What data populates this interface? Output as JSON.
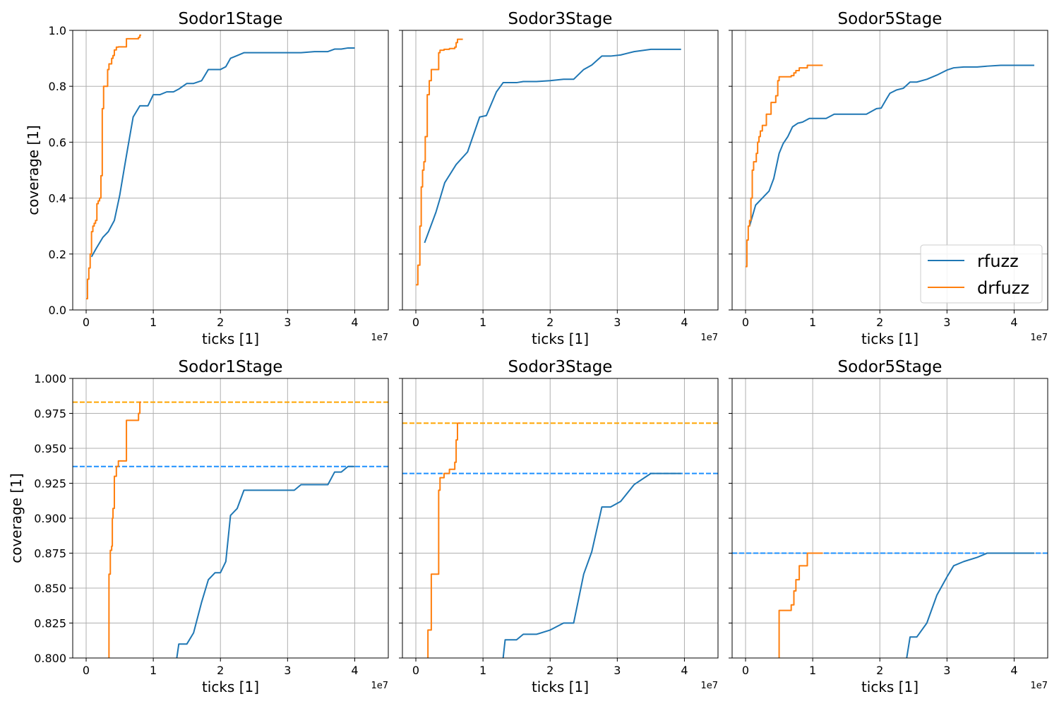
{
  "chart_data": [
    {
      "type": "line",
      "panel": "top-left",
      "title": "Sodor1Stage",
      "xlabel": "ticks [1]",
      "ylabel": "coverage [1]",
      "x_scale_label": "1e7",
      "xlim": [
        -0.2,
        4.5
      ],
      "ylim": [
        0.0,
        1.0
      ],
      "xticks": [
        0,
        1,
        2,
        3,
        4
      ],
      "yticks": [
        0.0,
        0.2,
        0.4,
        0.6,
        0.8,
        1.0
      ],
      "ytick_labels": [
        "0.0",
        "0.2",
        "0.4",
        "0.6",
        "0.8",
        "1.0"
      ],
      "show_ytick_labels": true,
      "grid": true,
      "series": [
        {
          "name": "rfuzz",
          "color": "#1f77b4",
          "step": false,
          "x": [
            0.08,
            0.15,
            0.25,
            0.33,
            0.42,
            0.5,
            0.57,
            0.62,
            0.7,
            0.8,
            0.92,
            1.0,
            1.1,
            1.2,
            1.3,
            1.38,
            1.5,
            1.6,
            1.72,
            1.82,
            1.92,
            2.0,
            2.08,
            2.15,
            2.25,
            2.35,
            2.5,
            2.8,
            3.1,
            3.2,
            3.4,
            3.6,
            3.7,
            3.8,
            3.9,
            4.0
          ],
          "y": [
            0.19,
            0.22,
            0.26,
            0.28,
            0.32,
            0.41,
            0.51,
            0.58,
            0.69,
            0.73,
            0.73,
            0.77,
            0.77,
            0.78,
            0.78,
            0.79,
            0.81,
            0.81,
            0.82,
            0.86,
            0.86,
            0.86,
            0.87,
            0.9,
            0.91,
            0.92,
            0.92,
            0.92,
            0.92,
            0.92,
            0.924,
            0.924,
            0.933,
            0.933,
            0.937,
            0.937
          ]
        },
        {
          "name": "drfuzz",
          "color": "#ff7f0e",
          "step": true,
          "x": [
            0.0,
            0.02,
            0.04,
            0.06,
            0.08,
            0.1,
            0.12,
            0.14,
            0.16,
            0.18,
            0.2,
            0.22,
            0.24,
            0.26,
            0.28,
            0.3,
            0.32,
            0.34,
            0.36,
            0.38,
            0.4,
            0.42,
            0.45,
            0.48,
            0.52,
            0.55,
            0.6,
            0.65,
            0.7,
            0.75,
            0.78,
            0.8,
            0.82
          ],
          "y": [
            0.04,
            0.11,
            0.15,
            0.2,
            0.28,
            0.3,
            0.31,
            0.32,
            0.38,
            0.39,
            0.4,
            0.48,
            0.72,
            0.8,
            0.8,
            0.8,
            0.86,
            0.88,
            0.88,
            0.9,
            0.91,
            0.93,
            0.94,
            0.941,
            0.941,
            0.941,
            0.97,
            0.97,
            0.97,
            0.97,
            0.975,
            0.983,
            0.983
          ]
        }
      ]
    },
    {
      "type": "line",
      "panel": "top-middle",
      "title": "Sodor3Stage",
      "xlabel": "ticks [1]",
      "ylabel": "",
      "x_scale_label": "1e7",
      "xlim": [
        -0.2,
        4.5
      ],
      "ylim": [
        0.0,
        1.0
      ],
      "xticks": [
        0,
        1,
        2,
        3,
        4
      ],
      "yticks": [
        0.0,
        0.2,
        0.4,
        0.6,
        0.8,
        1.0
      ],
      "ytick_labels": [],
      "show_ytick_labels": false,
      "grid": true,
      "series": [
        {
          "name": "rfuzz",
          "color": "#1f77b4",
          "step": false,
          "x": [
            0.13,
            0.3,
            0.43,
            0.6,
            0.77,
            0.95,
            1.05,
            1.2,
            1.3,
            1.5,
            1.6,
            1.8,
            2.0,
            2.2,
            2.35,
            2.5,
            2.62,
            2.77,
            2.9,
            3.05,
            3.25,
            3.5,
            3.75,
            3.95
          ],
          "y": [
            0.24,
            0.35,
            0.455,
            0.52,
            0.565,
            0.69,
            0.695,
            0.78,
            0.813,
            0.813,
            0.817,
            0.817,
            0.82,
            0.825,
            0.825,
            0.86,
            0.876,
            0.908,
            0.908,
            0.912,
            0.924,
            0.932,
            0.932,
            0.932
          ]
        },
        {
          "name": "drfuzz",
          "color": "#ff7f0e",
          "step": true,
          "x": [
            0.0,
            0.03,
            0.06,
            0.08,
            0.1,
            0.12,
            0.14,
            0.17,
            0.2,
            0.23,
            0.27,
            0.32,
            0.34,
            0.36,
            0.38,
            0.42,
            0.5,
            0.58,
            0.6,
            0.62,
            0.66,
            0.7
          ],
          "y": [
            0.09,
            0.16,
            0.3,
            0.44,
            0.5,
            0.53,
            0.62,
            0.77,
            0.82,
            0.86,
            0.86,
            0.86,
            0.92,
            0.929,
            0.929,
            0.932,
            0.935,
            0.94,
            0.956,
            0.968,
            0.968,
            0.968
          ]
        }
      ]
    },
    {
      "type": "line",
      "panel": "top-right",
      "title": "Sodor5Stage",
      "xlabel": "ticks [1]",
      "ylabel": "",
      "x_scale_label": "1e7",
      "xlim": [
        -0.2,
        4.5
      ],
      "ylim": [
        0.0,
        1.0
      ],
      "xticks": [
        0,
        1,
        2,
        3,
        4
      ],
      "yticks": [
        0.0,
        0.2,
        0.4,
        0.6,
        0.8,
        1.0
      ],
      "ytick_labels": [],
      "show_ytick_labels": false,
      "grid": true,
      "legend": {
        "placement": "lower right",
        "entries": [
          "rfuzz",
          "drfuzz"
        ]
      },
      "series": [
        {
          "name": "rfuzz",
          "color": "#1f77b4",
          "step": false,
          "x": [
            0.06,
            0.15,
            0.25,
            0.35,
            0.42,
            0.5,
            0.56,
            0.63,
            0.7,
            0.78,
            0.85,
            0.95,
            1.05,
            1.2,
            1.32,
            1.45,
            1.6,
            1.8,
            1.95,
            2.02,
            2.1,
            2.15,
            2.25,
            2.35,
            2.45,
            2.55,
            2.7,
            2.85,
            3.0,
            3.1,
            3.25,
            3.45,
            3.6,
            3.8,
            4.0,
            4.2,
            4.3
          ],
          "y": [
            0.3,
            0.375,
            0.4,
            0.425,
            0.47,
            0.56,
            0.595,
            0.62,
            0.655,
            0.668,
            0.672,
            0.685,
            0.685,
            0.685,
            0.7,
            0.7,
            0.7,
            0.7,
            0.72,
            0.722,
            0.755,
            0.775,
            0.787,
            0.793,
            0.815,
            0.815,
            0.825,
            0.84,
            0.858,
            0.866,
            0.869,
            0.869,
            0.872,
            0.875,
            0.875,
            0.875,
            0.875
          ]
        },
        {
          "name": "drfuzz",
          "color": "#ff7f0e",
          "step": true,
          "x": [
            0.0,
            0.02,
            0.04,
            0.06,
            0.08,
            0.1,
            0.12,
            0.14,
            0.16,
            0.18,
            0.2,
            0.22,
            0.25,
            0.28,
            0.31,
            0.35,
            0.38,
            0.42,
            0.45,
            0.48,
            0.5,
            0.55,
            0.62,
            0.68,
            0.72,
            0.75,
            0.8,
            0.85,
            0.92,
            1.0,
            1.05,
            1.1,
            1.15
          ],
          "y": [
            0.155,
            0.25,
            0.3,
            0.32,
            0.4,
            0.5,
            0.53,
            0.53,
            0.56,
            0.6,
            0.62,
            0.64,
            0.66,
            0.66,
            0.7,
            0.7,
            0.742,
            0.742,
            0.766,
            0.82,
            0.834,
            0.834,
            0.834,
            0.838,
            0.848,
            0.856,
            0.866,
            0.866,
            0.875,
            0.875,
            0.875,
            0.875,
            0.875
          ]
        }
      ]
    },
    {
      "type": "line",
      "panel": "bottom-left",
      "title": "Sodor1Stage",
      "xlabel": "ticks [1]",
      "ylabel": "coverage [1]",
      "x_scale_label": "1e7",
      "xlim": [
        -0.2,
        4.5
      ],
      "ylim": [
        0.8,
        1.0
      ],
      "xticks": [
        0,
        1,
        2,
        3,
        4
      ],
      "yticks": [
        0.8,
        0.825,
        0.85,
        0.875,
        0.9,
        0.925,
        0.95,
        0.975,
        1.0
      ],
      "ytick_labels": [
        "0.800",
        "0.825",
        "0.850",
        "0.875",
        "0.900",
        "0.925",
        "0.950",
        "0.975",
        "1.000"
      ],
      "show_ytick_labels": true,
      "grid": true,
      "hlines": [
        {
          "y": 0.983,
          "color": "#ffa500"
        },
        {
          "y": 0.937,
          "color": "#1e90ff"
        }
      ],
      "series": [
        {
          "name": "rfuzz",
          "color": "#1f77b4",
          "step": false,
          "x": [
            1.35,
            1.38,
            1.5,
            1.6,
            1.72,
            1.82,
            1.92,
            2.0,
            2.08,
            2.15,
            2.25,
            2.35,
            2.5,
            2.8,
            3.1,
            3.2,
            3.4,
            3.6,
            3.7,
            3.8,
            3.9,
            4.0
          ],
          "y": [
            0.8,
            0.81,
            0.81,
            0.818,
            0.84,
            0.856,
            0.861,
            0.861,
            0.869,
            0.902,
            0.907,
            0.92,
            0.92,
            0.92,
            0.92,
            0.924,
            0.924,
            0.924,
            0.933,
            0.933,
            0.937,
            0.937
          ]
        },
        {
          "name": "drfuzz",
          "color": "#ff7f0e",
          "step": true,
          "x": [
            0.33,
            0.34,
            0.36,
            0.38,
            0.39,
            0.4,
            0.42,
            0.45,
            0.48,
            0.52,
            0.55,
            0.6,
            0.65,
            0.7,
            0.75,
            0.78,
            0.8,
            0.82
          ],
          "y": [
            0.8,
            0.86,
            0.877,
            0.88,
            0.9,
            0.907,
            0.93,
            0.937,
            0.941,
            0.941,
            0.941,
            0.97,
            0.97,
            0.97,
            0.97,
            0.975,
            0.983,
            0.983
          ]
        }
      ]
    },
    {
      "type": "line",
      "panel": "bottom-middle",
      "title": "Sodor3Stage",
      "xlabel": "ticks [1]",
      "ylabel": "",
      "x_scale_label": "1e7",
      "xlim": [
        -0.2,
        4.5
      ],
      "ylim": [
        0.8,
        1.0
      ],
      "xticks": [
        0,
        1,
        2,
        3,
        4
      ],
      "yticks": [
        0.8,
        0.825,
        0.85,
        0.875,
        0.9,
        0.925,
        0.95,
        0.975,
        1.0
      ],
      "ytick_labels": [],
      "show_ytick_labels": false,
      "grid": true,
      "hlines": [
        {
          "y": 0.968,
          "color": "#ffa500"
        },
        {
          "y": 0.932,
          "color": "#1e90ff"
        }
      ],
      "series": [
        {
          "name": "rfuzz",
          "color": "#1f77b4",
          "step": false,
          "x": [
            1.3,
            1.33,
            1.5,
            1.6,
            1.8,
            2.0,
            2.2,
            2.35,
            2.5,
            2.62,
            2.77,
            2.9,
            3.05,
            3.25,
            3.5,
            3.75,
            3.95
          ],
          "y": [
            0.8,
            0.813,
            0.813,
            0.817,
            0.817,
            0.82,
            0.825,
            0.825,
            0.86,
            0.876,
            0.908,
            0.908,
            0.912,
            0.924,
            0.932,
            0.932,
            0.932
          ]
        },
        {
          "name": "drfuzz",
          "color": "#ff7f0e",
          "step": true,
          "x": [
            0.17,
            0.18,
            0.2,
            0.23,
            0.27,
            0.32,
            0.34,
            0.36,
            0.38,
            0.42,
            0.5,
            0.58,
            0.6,
            0.62,
            0.66
          ],
          "y": [
            0.8,
            0.82,
            0.82,
            0.86,
            0.86,
            0.86,
            0.92,
            0.929,
            0.929,
            0.932,
            0.935,
            0.94,
            0.956,
            0.968,
            0.968
          ]
        }
      ]
    },
    {
      "type": "line",
      "panel": "bottom-right",
      "title": "Sodor5Stage",
      "xlabel": "ticks [1]",
      "ylabel": "",
      "x_scale_label": "1e7",
      "xlim": [
        -0.2,
        4.5
      ],
      "ylim": [
        0.8,
        1.0
      ],
      "xticks": [
        0,
        1,
        2,
        3,
        4
      ],
      "yticks": [
        0.8,
        0.825,
        0.85,
        0.875,
        0.9,
        0.925,
        0.95,
        0.975,
        1.0
      ],
      "ytick_labels": [],
      "show_ytick_labels": false,
      "grid": true,
      "hlines": [
        {
          "y": 0.875,
          "color": "#1e90ff"
        }
      ],
      "series": [
        {
          "name": "rfuzz",
          "color": "#1f77b4",
          "step": false,
          "x": [
            2.4,
            2.45,
            2.55,
            2.7,
            2.85,
            3.0,
            3.1,
            3.25,
            3.45,
            3.6,
            3.8,
            4.0,
            4.2,
            4.3
          ],
          "y": [
            0.8,
            0.815,
            0.815,
            0.825,
            0.845,
            0.858,
            0.866,
            0.869,
            0.872,
            0.875,
            0.875,
            0.875,
            0.875,
            0.875
          ]
        },
        {
          "name": "drfuzz",
          "color": "#ff7f0e",
          "step": true,
          "x": [
            0.49,
            0.5,
            0.55,
            0.62,
            0.68,
            0.72,
            0.75,
            0.8,
            0.85,
            0.92,
            1.0,
            1.05,
            1.1,
            1.15
          ],
          "y": [
            0.8,
            0.834,
            0.834,
            0.834,
            0.838,
            0.848,
            0.856,
            0.866,
            0.866,
            0.875,
            0.875,
            0.875,
            0.875,
            0.875
          ]
        }
      ]
    }
  ]
}
